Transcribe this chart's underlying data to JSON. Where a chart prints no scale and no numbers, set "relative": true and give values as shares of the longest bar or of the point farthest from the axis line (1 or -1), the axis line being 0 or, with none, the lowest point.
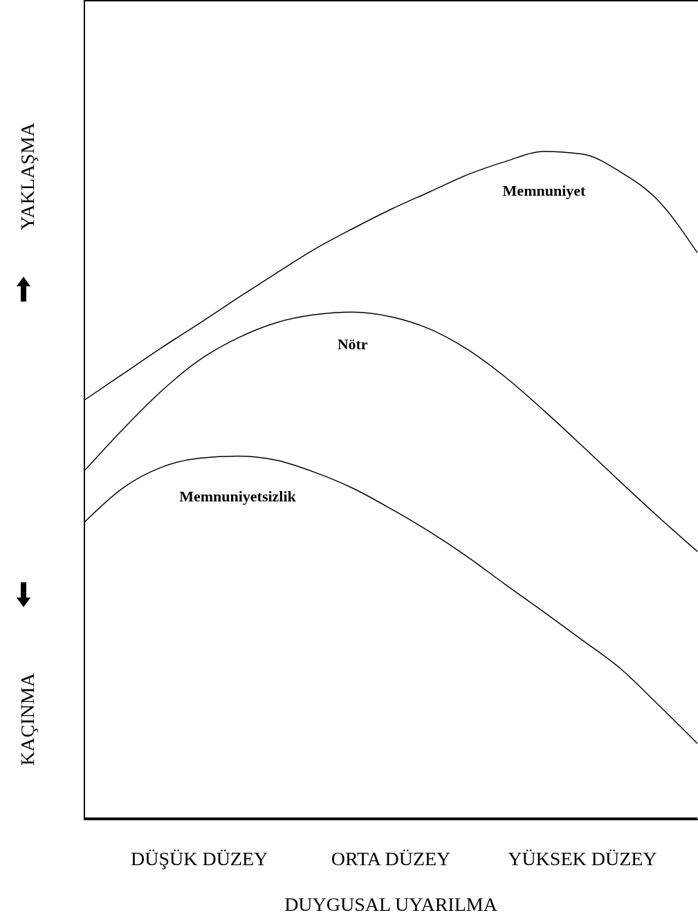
{
  "chart_data": {
    "type": "line",
    "relative": true,
    "xlabel": "DUYGUSAL UYARILMA",
    "ylabel": "YAKLAŞMA",
    "annotations": [
      "KAÇINMA"
    ],
    "categories": [
      null,
      null,
      null,
      "DÜŞÜK DÜZEY",
      null,
      null,
      null,
      null,
      "ORTA DÜZEY",
      null,
      null,
      null,
      null,
      "YÜKSEK DÜZEY",
      null,
      null,
      null
    ],
    "series": [
      {
        "name": "Memnuniyet",
        "color": "#000000",
        "values": [
          0.627,
          0.666,
          0.705,
          0.742,
          0.78,
          0.817,
          0.853,
          0.884,
          0.913,
          0.939,
          0.965,
          0.985,
          1.0,
          0.996,
          0.969,
          0.925,
          0.848
        ]
      },
      {
        "name": "Nötr",
        "color": "#000000",
        "values": [
          0.521,
          0.583,
          0.64,
          0.687,
          0.72,
          0.743,
          0.755,
          0.759,
          0.752,
          0.734,
          0.703,
          0.661,
          0.611,
          0.558,
          0.504,
          0.451,
          0.4
        ]
      },
      {
        "name": "Memnuniyetsizlik",
        "color": "#000000",
        "values": [
          0.444,
          0.495,
          0.526,
          0.54,
          0.543,
          0.537,
          0.519,
          0.495,
          0.464,
          0.43,
          0.392,
          0.35,
          0.309,
          0.267,
          0.224,
          0.169,
          0.112
        ]
      }
    ],
    "marker": "none",
    "line_style": "solid"
  }
}
